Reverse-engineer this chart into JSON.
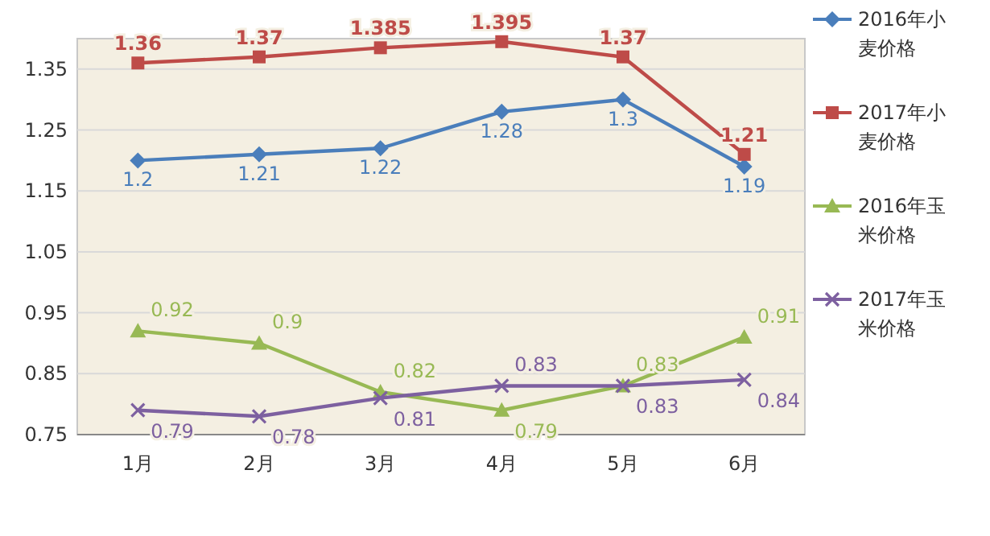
{
  "chart_data": {
    "type": "line",
    "categories": [
      "1月",
      "2月",
      "3月",
      "4月",
      "5月",
      "6月"
    ],
    "series": [
      {
        "name": "2016年小麦价格",
        "color": "#4a7ebb",
        "marker": "diamond",
        "values": [
          1.2,
          1.21,
          1.22,
          1.28,
          1.3,
          1.19
        ]
      },
      {
        "name": "2017年小麦价格",
        "color": "#be4b48",
        "marker": "square",
        "values": [
          1.36,
          1.37,
          1.385,
          1.395,
          1.37,
          1.21
        ]
      },
      {
        "name": "2016年玉米价格",
        "color": "#98b954",
        "marker": "triangle",
        "values": [
          0.92,
          0.9,
          0.82,
          0.79,
          0.83,
          0.91
        ]
      },
      {
        "name": "2017年玉米价格",
        "color": "#7d60a0",
        "marker": "cross",
        "values": [
          0.79,
          0.78,
          0.81,
          0.83,
          0.83,
          0.84
        ]
      }
    ],
    "ylim": [
      0.75,
      1.4
    ],
    "yticks": [
      0.75,
      0.85,
      0.95,
      1.05,
      1.15,
      1.25,
      1.35
    ],
    "grid": "y",
    "legend": "right",
    "data_labels": true
  }
}
